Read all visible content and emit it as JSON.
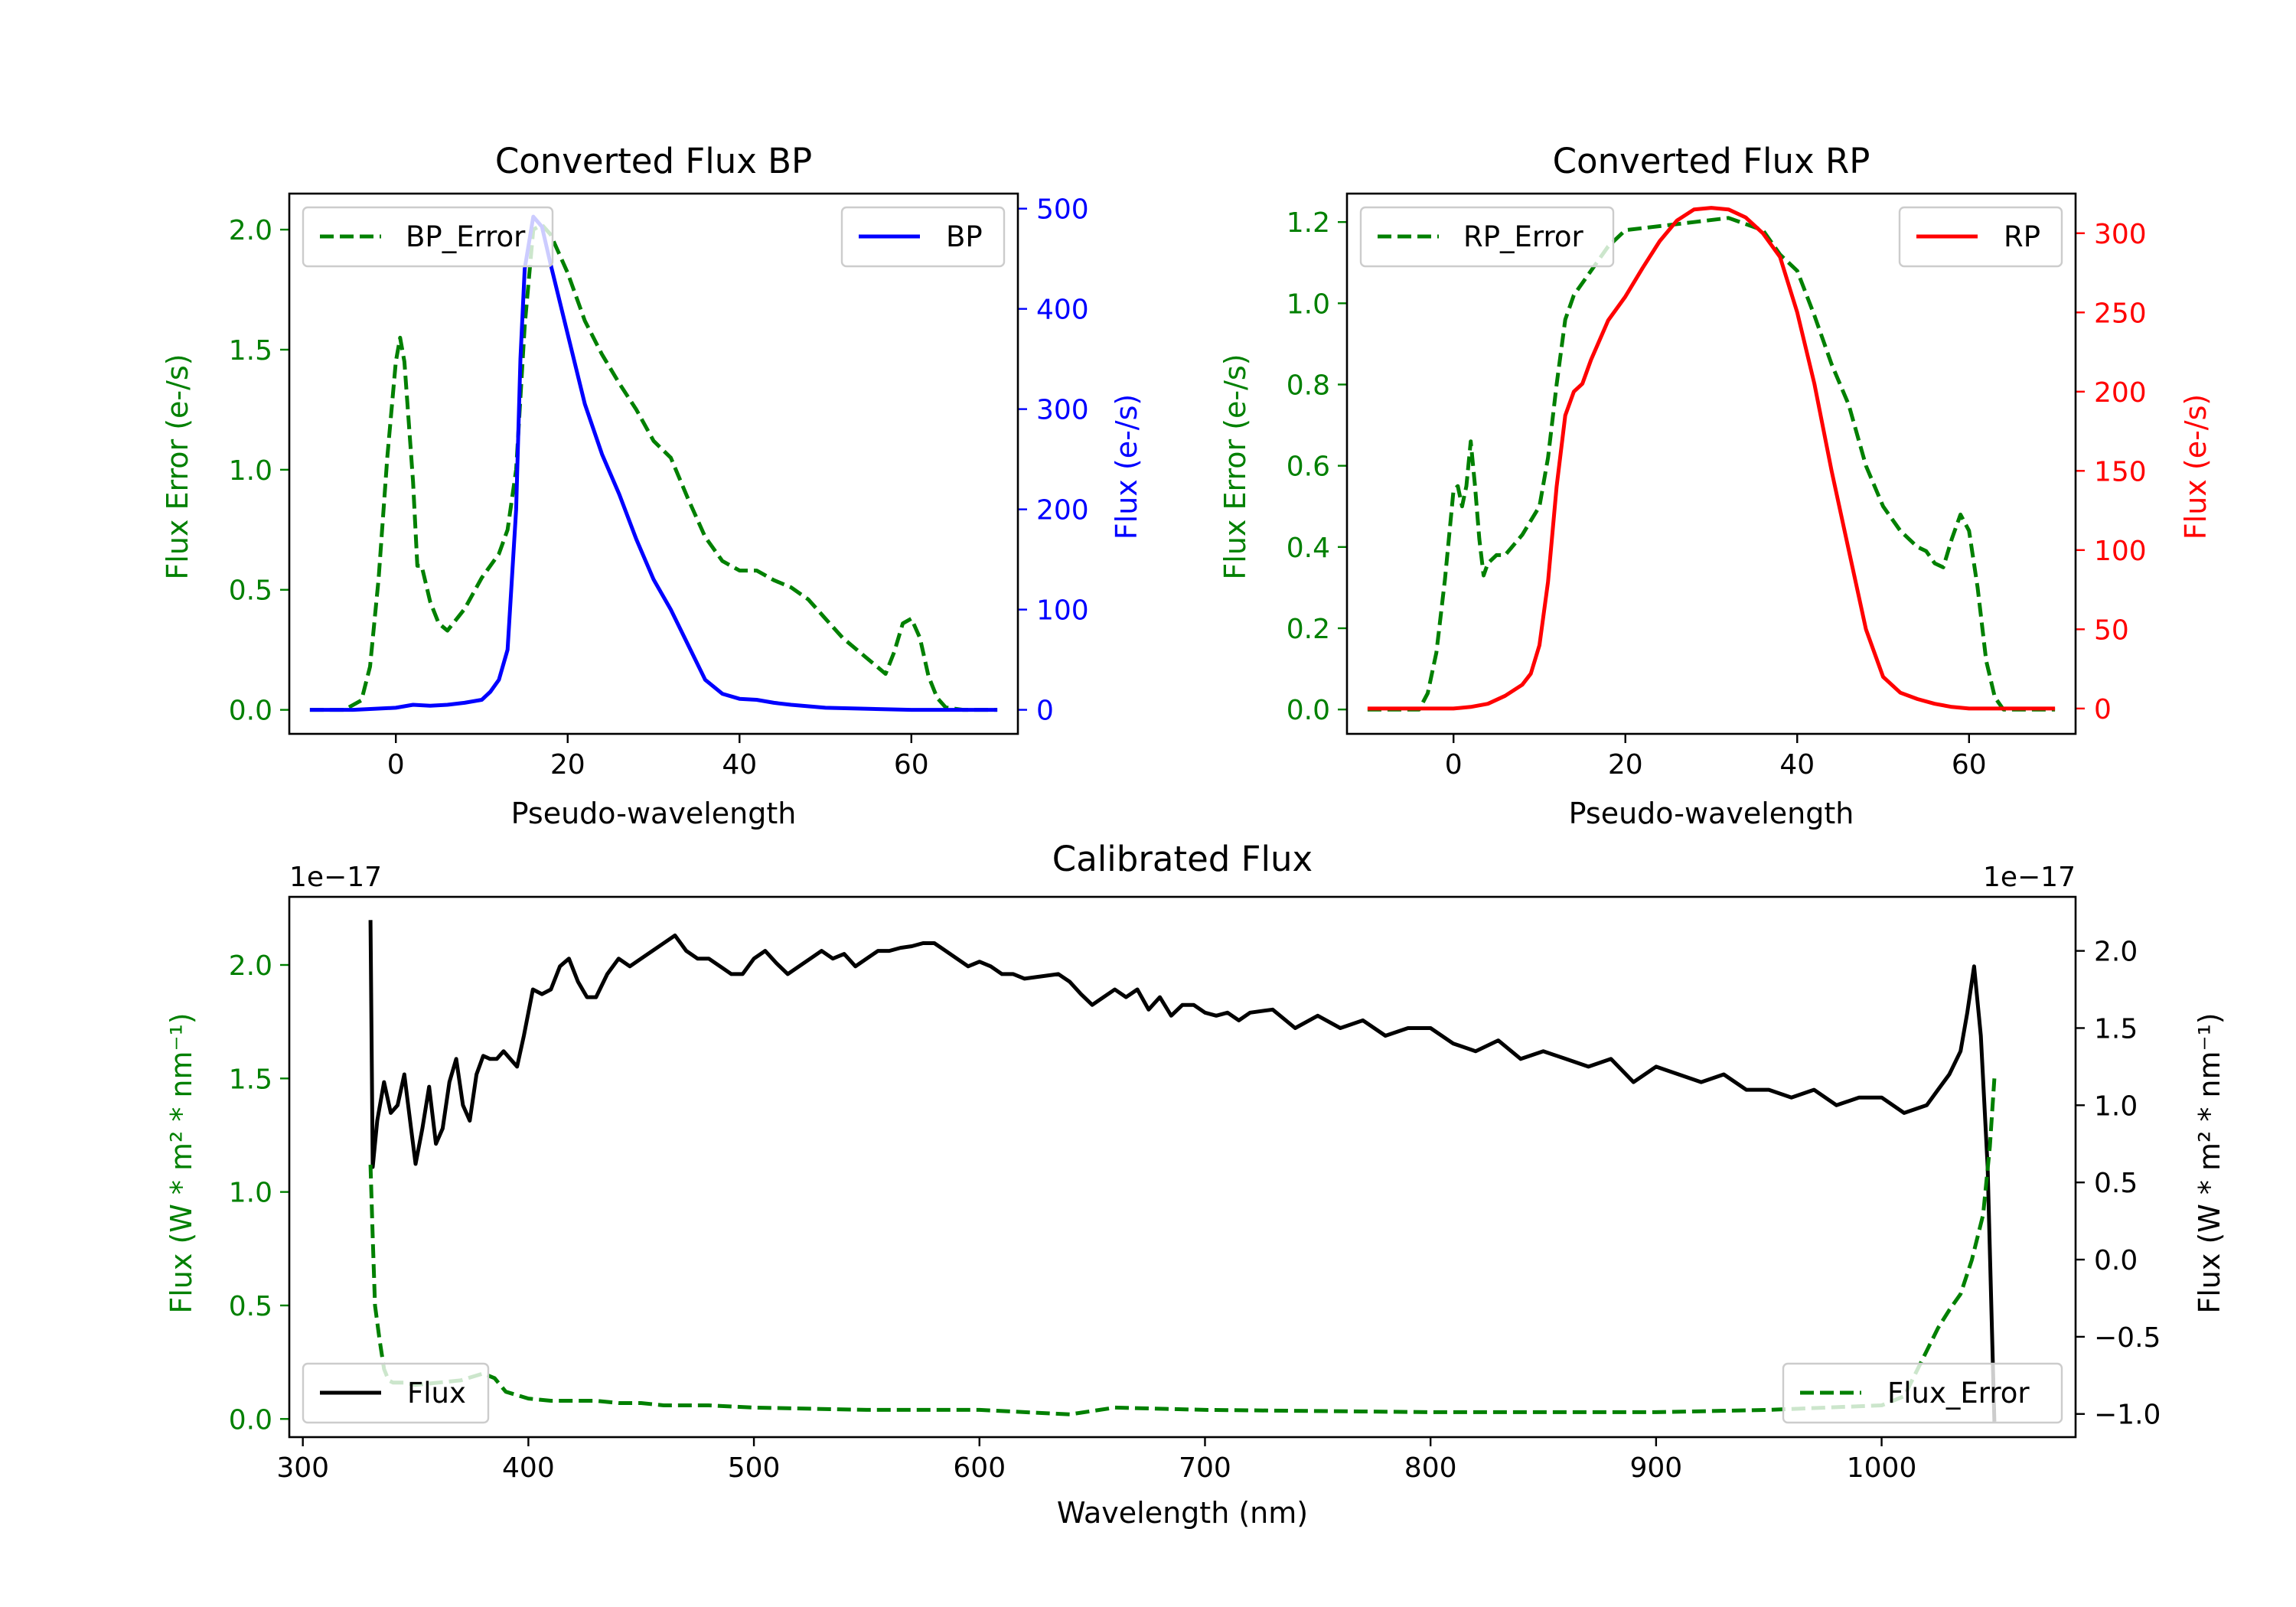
{
  "chart_data": [
    {
      "type": "line",
      "title": "Converted Flux BP",
      "xlabel": "Pseudo-wavelength",
      "xlim": [
        -12.4,
        72.4
      ],
      "xticks": [
        0,
        20,
        40,
        60
      ],
      "left_axis": {
        "label": "Flux Error (e-/s)",
        "color": "#008000",
        "ylim": [
          -0.1,
          2.15
        ],
        "ticks": [
          0.0,
          0.5,
          1.0,
          1.5,
          2.0
        ]
      },
      "right_axis": {
        "label": "Flux (e-/s)",
        "color": "#0000ff",
        "ylim": [
          -24,
          515
        ],
        "ticks": [
          0,
          100,
          200,
          300,
          400,
          500
        ]
      },
      "series": [
        {
          "name": "BP_Error",
          "axis": "left",
          "color": "#008000",
          "style": "dashed",
          "x": [
            -10,
            -6,
            -4,
            -3,
            -2,
            -1,
            0,
            0.5,
            1,
            2,
            2.5,
            3,
            4,
            5,
            6,
            8,
            10,
            12,
            13,
            14,
            15,
            16,
            17,
            18,
            19,
            20,
            22,
            24,
            26,
            28,
            30,
            32,
            34,
            36,
            38,
            40,
            42,
            44,
            46,
            48,
            50,
            52,
            54,
            56,
            57,
            58,
            59,
            60,
            61,
            62,
            63,
            64,
            66,
            70
          ],
          "y": [
            0.0,
            0.0,
            0.04,
            0.18,
            0.55,
            1.05,
            1.45,
            1.55,
            1.45,
            0.95,
            0.6,
            0.6,
            0.45,
            0.36,
            0.33,
            0.42,
            0.55,
            0.65,
            0.75,
            1.0,
            1.6,
            2.0,
            2.02,
            1.98,
            1.9,
            1.82,
            1.62,
            1.48,
            1.36,
            1.25,
            1.12,
            1.05,
            0.88,
            0.72,
            0.62,
            0.58,
            0.58,
            0.54,
            0.51,
            0.46,
            0.38,
            0.3,
            0.24,
            0.18,
            0.15,
            0.24,
            0.36,
            0.38,
            0.3,
            0.14,
            0.05,
            0.01,
            0.0,
            0.0
          ]
        },
        {
          "name": "BP",
          "axis": "right",
          "color": "#0000ff",
          "style": "solid",
          "x": [
            -10,
            -5,
            0,
            2,
            4,
            6,
            8,
            10,
            11,
            12,
            13,
            14,
            14.5,
            15,
            16,
            17,
            18,
            20,
            22,
            24,
            26,
            28,
            30,
            32,
            34,
            36,
            38,
            40,
            42,
            44,
            46,
            50,
            55,
            60,
            65,
            70
          ],
          "y": [
            0,
            0,
            2,
            5,
            4,
            5,
            7,
            10,
            18,
            30,
            60,
            200,
            350,
            440,
            492,
            482,
            445,
            375,
            305,
            255,
            215,
            170,
            130,
            100,
            65,
            30,
            16,
            11,
            10,
            7,
            5,
            2,
            1,
            0,
            0,
            0
          ]
        }
      ],
      "legends": [
        {
          "entries": [
            "BP_Error"
          ],
          "loc": "upper left"
        },
        {
          "entries": [
            "BP"
          ],
          "loc": "upper right"
        }
      ]
    },
    {
      "type": "line",
      "title": "Converted Flux RP",
      "xlabel": "Pseudo-wavelength",
      "xlim": [
        -12.4,
        72.4
      ],
      "xticks": [
        0,
        20,
        40,
        60
      ],
      "left_axis": {
        "label": "Flux Error (e-/s)",
        "color": "#008000",
        "ylim": [
          -0.06,
          1.27
        ],
        "ticks": [
          0.0,
          0.2,
          0.4,
          0.6,
          0.8,
          1.0,
          1.2
        ]
      },
      "right_axis": {
        "label": "Flux (e-/s)",
        "color": "#ff0000",
        "ylim": [
          -16,
          325
        ],
        "ticks": [
          0,
          50,
          100,
          150,
          200,
          250,
          300
        ]
      },
      "series": [
        {
          "name": "RP_Error",
          "axis": "left",
          "color": "#008000",
          "style": "dashed",
          "x": [
            -10,
            -4,
            -3,
            -2,
            -1,
            0,
            0.5,
            1,
            1.5,
            2,
            2.5,
            3,
            3.5,
            4,
            5,
            6,
            8,
            10,
            11,
            12,
            13,
            14,
            16,
            18,
            20,
            24,
            28,
            32,
            36,
            38,
            40,
            42,
            44,
            46,
            48,
            50,
            52,
            54,
            55,
            56,
            57,
            58,
            59,
            60,
            61,
            62,
            63,
            64,
            66,
            70
          ],
          "y": [
            0.0,
            0.0,
            0.04,
            0.14,
            0.32,
            0.54,
            0.55,
            0.5,
            0.55,
            0.66,
            0.55,
            0.42,
            0.33,
            0.36,
            0.38,
            0.38,
            0.43,
            0.5,
            0.62,
            0.8,
            0.96,
            1.02,
            1.08,
            1.14,
            1.18,
            1.19,
            1.2,
            1.21,
            1.18,
            1.12,
            1.08,
            0.97,
            0.85,
            0.75,
            0.6,
            0.5,
            0.44,
            0.4,
            0.39,
            0.36,
            0.35,
            0.42,
            0.48,
            0.44,
            0.3,
            0.12,
            0.03,
            0.0,
            0.0,
            0.0
          ]
        },
        {
          "name": "RP",
          "axis": "right",
          "color": "#ff0000",
          "style": "solid",
          "x": [
            -10,
            0,
            2,
            4,
            6,
            8,
            9,
            10,
            11,
            12,
            13,
            14,
            15,
            16,
            18,
            20,
            22,
            24,
            26,
            28,
            30,
            32,
            34,
            36,
            38,
            40,
            42,
            44,
            46,
            48,
            50,
            52,
            54,
            56,
            58,
            60,
            65,
            70
          ],
          "y": [
            0,
            0,
            1,
            3,
            8,
            15,
            22,
            40,
            80,
            140,
            185,
            200,
            205,
            220,
            245,
            260,
            278,
            295,
            308,
            315,
            316,
            315,
            310,
            300,
            285,
            250,
            205,
            150,
            100,
            50,
            20,
            10,
            6,
            3,
            1,
            0,
            0,
            0
          ]
        }
      ],
      "legends": [
        {
          "entries": [
            "RP_Error"
          ],
          "loc": "upper left"
        },
        {
          "entries": [
            "RP"
          ],
          "loc": "upper right"
        }
      ]
    },
    {
      "type": "line",
      "title": "Calibrated Flux",
      "xlabel": "Wavelength (nm)",
      "xlim": [
        294,
        1086
      ],
      "xticks": [
        300,
        400,
        500,
        600,
        700,
        800,
        900,
        1000
      ],
      "left_axis": {
        "label": "Flux (W * m² * nm⁻¹)",
        "color": "#008000",
        "ylim": [
          -0.08,
          2.3
        ],
        "ticks": [
          0.0,
          0.5,
          1.0,
          1.5,
          2.0
        ],
        "tick_labels": [
          "0.0",
          "0.5",
          "1.0",
          "1.5",
          "2.0"
        ],
        "offset_text": "1e−17"
      },
      "right_axis": {
        "label": "Flux (W * m² * nm⁻¹)",
        "color": "#000000",
        "ylim": [
          -1.15,
          2.35
        ],
        "ticks": [
          -1.0,
          -0.5,
          0.0,
          0.5,
          1.0,
          1.5,
          2.0
        ],
        "tick_labels": [
          "−1.0",
          "−0.5",
          "0.0",
          "0.5",
          "1.0",
          "1.5",
          "2.0"
        ],
        "offset_text": "1e−17"
      },
      "series": [
        {
          "name": "Flux",
          "axis": "right",
          "color": "#000000",
          "style": "solid",
          "x": [
            330,
            331,
            333,
            336,
            339,
            342,
            345,
            348,
            350,
            353,
            356,
            359,
            362,
            365,
            368,
            371,
            374,
            377,
            380,
            383,
            386,
            389,
            392,
            395,
            398,
            402,
            406,
            410,
            414,
            418,
            422,
            426,
            430,
            435,
            440,
            445,
            450,
            455,
            460,
            465,
            470,
            475,
            480,
            485,
            490,
            495,
            500,
            505,
            510,
            515,
            520,
            525,
            530,
            535,
            540,
            545,
            550,
            555,
            560,
            565,
            570,
            575,
            580,
            585,
            590,
            595,
            600,
            605,
            610,
            615,
            620,
            625,
            630,
            635,
            640,
            645,
            650,
            655,
            660,
            665,
            670,
            675,
            680,
            685,
            690,
            695,
            700,
            705,
            710,
            715,
            720,
            730,
            740,
            750,
            760,
            770,
            780,
            790,
            800,
            810,
            820,
            830,
            840,
            850,
            860,
            870,
            880,
            890,
            900,
            910,
            920,
            930,
            940,
            950,
            960,
            970,
            980,
            990,
            1000,
            1010,
            1020,
            1025,
            1030,
            1035,
            1038,
            1041,
            1044,
            1047,
            1050
          ],
          "y": [
            2.2,
            0.6,
            0.9,
            1.15,
            0.95,
            1.0,
            1.2,
            0.85,
            0.62,
            0.85,
            1.12,
            0.75,
            0.85,
            1.15,
            1.3,
            1.0,
            0.9,
            1.2,
            1.32,
            1.3,
            1.3,
            1.35,
            1.3,
            1.25,
            1.45,
            1.75,
            1.72,
            1.75,
            1.9,
            1.95,
            1.8,
            1.7,
            1.7,
            1.85,
            1.95,
            1.9,
            1.95,
            2.0,
            2.05,
            2.1,
            2.0,
            1.95,
            1.95,
            1.9,
            1.85,
            1.85,
            1.95,
            2.0,
            1.92,
            1.85,
            1.9,
            1.95,
            2.0,
            1.95,
            1.98,
            1.9,
            1.95,
            2.0,
            2.0,
            2.02,
            2.03,
            2.05,
            2.05,
            2.0,
            1.95,
            1.9,
            1.93,
            1.9,
            1.85,
            1.85,
            1.82,
            1.83,
            1.84,
            1.85,
            1.8,
            1.72,
            1.65,
            1.7,
            1.75,
            1.7,
            1.75,
            1.62,
            1.7,
            1.58,
            1.65,
            1.65,
            1.6,
            1.58,
            1.6,
            1.55,
            1.6,
            1.62,
            1.5,
            1.58,
            1.5,
            1.55,
            1.45,
            1.5,
            1.5,
            1.4,
            1.35,
            1.42,
            1.3,
            1.35,
            1.3,
            1.25,
            1.3,
            1.15,
            1.25,
            1.2,
            1.15,
            1.2,
            1.1,
            1.1,
            1.05,
            1.1,
            1.0,
            1.05,
            1.05,
            0.95,
            1.0,
            1.1,
            1.2,
            1.35,
            1.6,
            1.9,
            1.45,
            0.6,
            -1.05
          ]
        },
        {
          "name": "Flux_Error",
          "axis": "left",
          "color": "#008000",
          "style": "dashed",
          "x": [
            330,
            331,
            332,
            334,
            336,
            338,
            340,
            345,
            350,
            360,
            370,
            380,
            385,
            390,
            400,
            410,
            420,
            430,
            440,
            450,
            460,
            480,
            500,
            550,
            600,
            640,
            660,
            700,
            800,
            900,
            950,
            1000,
            1010,
            1015,
            1020,
            1025,
            1030,
            1035,
            1040,
            1045,
            1048,
            1050
          ],
          "y": [
            1.12,
            0.8,
            0.5,
            0.35,
            0.22,
            0.17,
            0.16,
            0.16,
            0.15,
            0.16,
            0.17,
            0.2,
            0.18,
            0.12,
            0.09,
            0.08,
            0.08,
            0.08,
            0.07,
            0.07,
            0.06,
            0.06,
            0.05,
            0.04,
            0.04,
            0.02,
            0.05,
            0.04,
            0.03,
            0.03,
            0.04,
            0.06,
            0.1,
            0.2,
            0.3,
            0.4,
            0.48,
            0.55,
            0.7,
            0.9,
            1.2,
            1.5
          ]
        }
      ],
      "legends": [
        {
          "entries": [
            "Flux"
          ],
          "loc": "lower left"
        },
        {
          "entries": [
            "Flux_Error"
          ],
          "loc": "lower right"
        }
      ]
    }
  ]
}
